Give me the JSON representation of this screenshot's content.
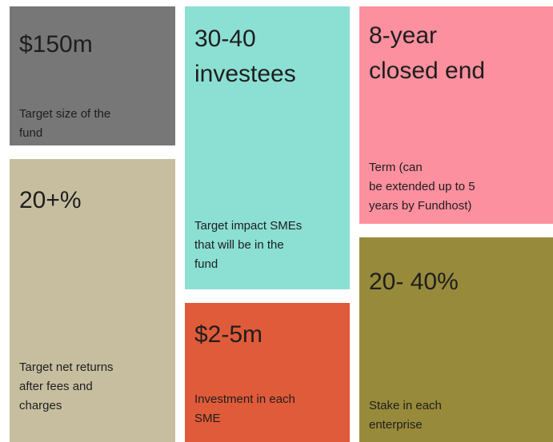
{
  "tiles": [
    {
      "headline": [
        "$150m"
      ],
      "description": [
        "Target size of the",
        "fund"
      ]
    },
    {
      "headline": [
        "20+%"
      ],
      "description": [
        "Target net returns",
        "after fees and",
        "charges"
      ]
    },
    {
      "headline": [
        "30-40",
        "investees"
      ],
      "description": [
        "Target impact SMEs",
        "that will be in the",
        "fund"
      ]
    },
    {
      "headline": [
        "$2-5m"
      ],
      "description": [
        "Investment in each",
        "SME"
      ]
    },
    {
      "headline": [
        "8-year",
        "closed end"
      ],
      "description": [
        "Term (can",
        "be extended up to 5",
        "years by Fundhost)"
      ]
    },
    {
      "headline": [
        "20- 40%"
      ],
      "description": [
        "Stake in each",
        "enterprise"
      ]
    }
  ]
}
